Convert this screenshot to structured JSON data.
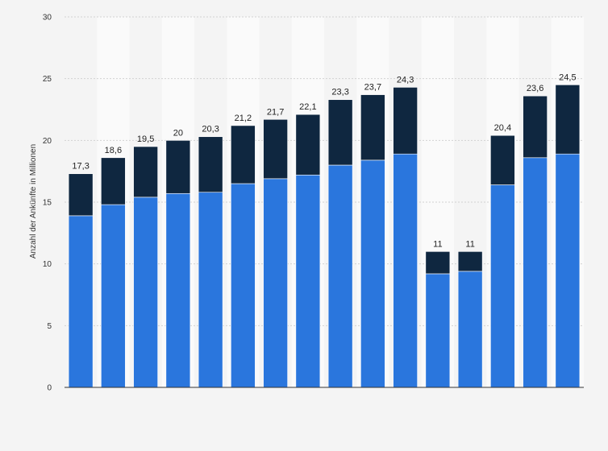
{
  "chart_data": {
    "type": "bar",
    "stacked": true,
    "ylabel": "Anzahl der Ankünfte in Millionen",
    "ylim": [
      0,
      30
    ],
    "yticks": [
      0,
      5,
      10,
      15,
      20,
      25,
      30
    ],
    "grid": true,
    "legend": "none",
    "categories": [
      "",
      "",
      "",
      "",
      "",
      "",
      "",
      "",
      "",
      "",
      "",
      "",
      "",
      "",
      "",
      ""
    ],
    "series": [
      {
        "color": "#2a76dd",
        "values": [
          13.9,
          14.8,
          15.4,
          15.7,
          15.8,
          16.5,
          16.9,
          17.2,
          18.0,
          18.4,
          18.9,
          9.2,
          9.4,
          16.4,
          18.6,
          18.9
        ]
      },
      {
        "color": "#0f2740",
        "values": [
          3.4,
          3.8,
          4.1,
          4.3,
          4.5,
          4.7,
          4.8,
          4.9,
          5.3,
          5.3,
          5.4,
          1.8,
          1.6,
          4.0,
          5.0,
          5.6
        ]
      }
    ],
    "totals": [
      17.3,
      18.6,
      19.5,
      20,
      20.3,
      21.2,
      21.7,
      22.1,
      23.3,
      23.7,
      24.3,
      11,
      11,
      20.4,
      23.6,
      24.5
    ],
    "total_labels": [
      "17,3",
      "18,6",
      "19,5",
      "20",
      "20,3",
      "21,2",
      "21,7",
      "22,1",
      "23,3",
      "23,7",
      "24,3",
      "11",
      "11",
      "20,4",
      "23,6",
      "24,5"
    ]
  }
}
